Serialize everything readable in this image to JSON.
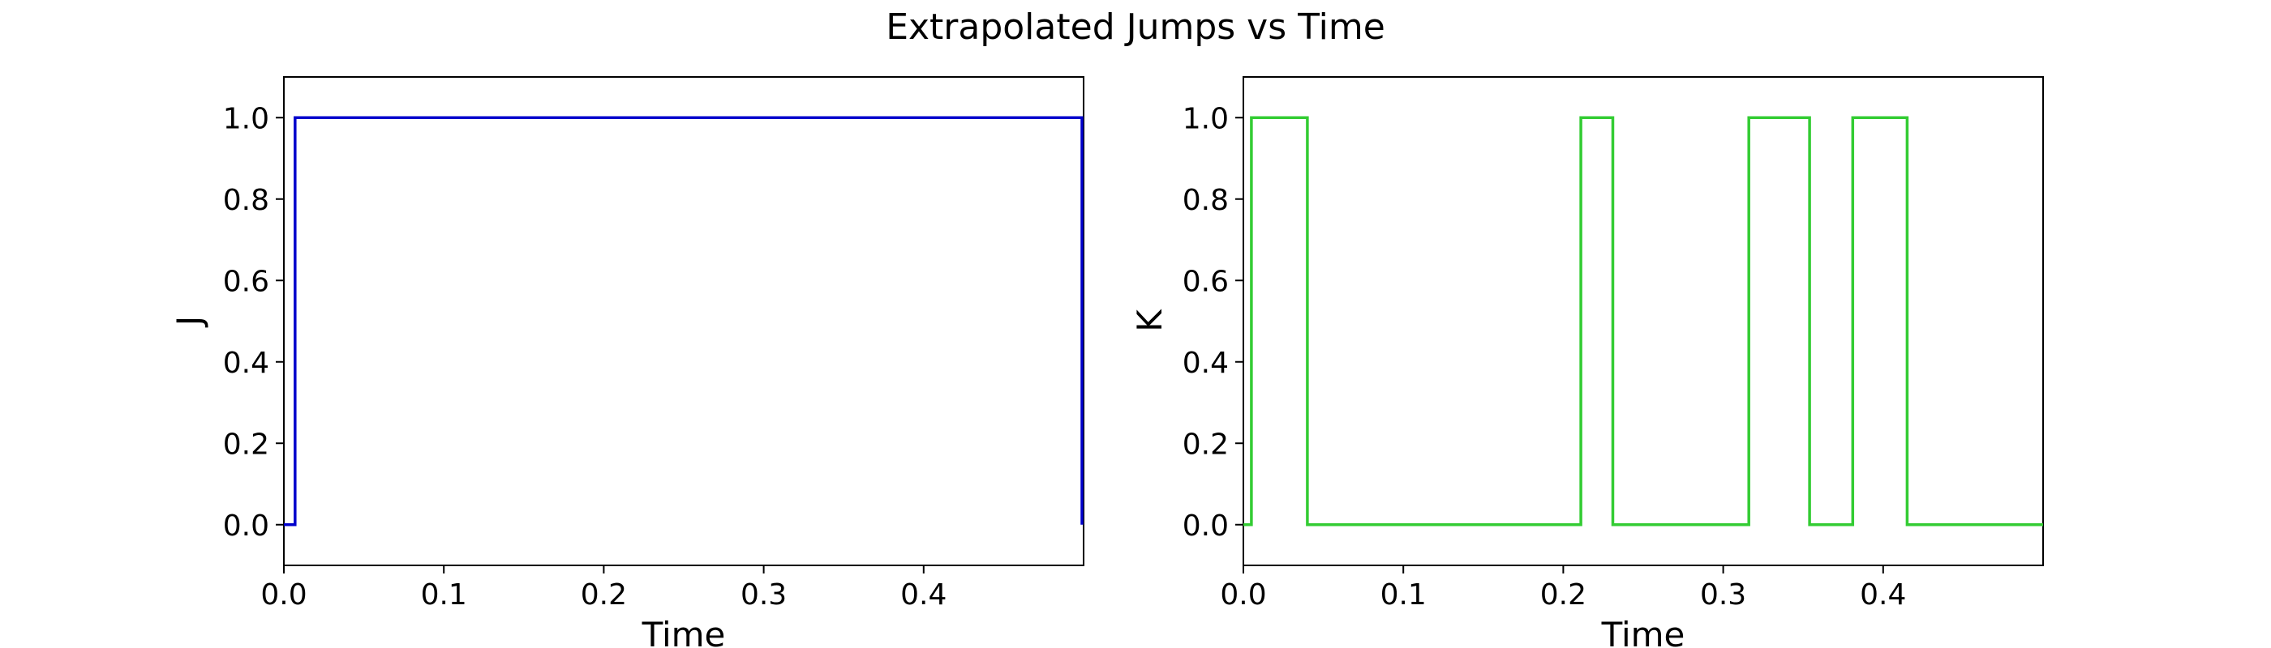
{
  "figure_title": "Extrapolated Jumps vs Time",
  "chart_data": [
    {
      "type": "line",
      "step": true,
      "title": "",
      "xlabel": "Time",
      "ylabel": "J",
      "xlim": [
        0.0,
        0.5
      ],
      "ylim": [
        -0.1,
        1.1
      ],
      "xticks": [
        0.0,
        0.1,
        0.2,
        0.3,
        0.4
      ],
      "xtick_labels": [
        "0.0",
        "0.1",
        "0.2",
        "0.3",
        "0.4"
      ],
      "yticks": [
        0.0,
        0.2,
        0.4,
        0.6,
        0.8,
        1.0
      ],
      "ytick_labels": [
        "0.0",
        "0.2",
        "0.4",
        "0.6",
        "0.8",
        "1.0"
      ],
      "series": [
        {
          "name": "J",
          "color": "#0000cc",
          "x": [
            0.0,
            0.007,
            0.007,
            0.499,
            0.499
          ],
          "y": [
            0,
            0,
            1,
            1,
            0
          ]
        }
      ]
    },
    {
      "type": "line",
      "step": true,
      "title": "",
      "xlabel": "Time",
      "ylabel": "K",
      "xlim": [
        0.0,
        0.5
      ],
      "ylim": [
        -0.1,
        1.1
      ],
      "xticks": [
        0.0,
        0.1,
        0.2,
        0.3,
        0.4
      ],
      "xtick_labels": [
        "0.0",
        "0.1",
        "0.2",
        "0.3",
        "0.4"
      ],
      "yticks": [
        0.0,
        0.2,
        0.4,
        0.6,
        0.8,
        1.0
      ],
      "ytick_labels": [
        "0.0",
        "0.2",
        "0.4",
        "0.6",
        "0.8",
        "1.0"
      ],
      "series": [
        {
          "name": "K",
          "color": "#33cc33",
          "x": [
            0.0,
            0.005,
            0.005,
            0.04,
            0.04,
            0.211,
            0.211,
            0.231,
            0.231,
            0.316,
            0.316,
            0.354,
            0.354,
            0.381,
            0.381,
            0.415,
            0.415,
            0.5
          ],
          "y": [
            0,
            0,
            1,
            1,
            0,
            0,
            1,
            1,
            0,
            0,
            1,
            1,
            0,
            0,
            1,
            1,
            0,
            0
          ]
        }
      ]
    }
  ]
}
